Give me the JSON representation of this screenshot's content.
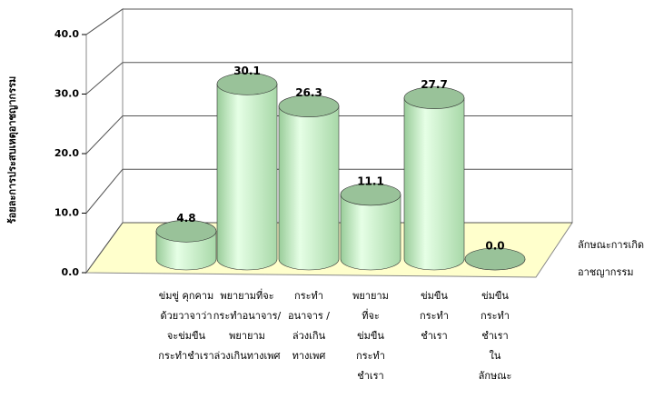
{
  "chart_data": {
    "type": "bar3d",
    "y_axis_label": "ร้อยละการประสบเหตุอาชญากรรม",
    "depth_axis_label": [
      "ลักษณะการเกิด",
      "อาชญากรรม"
    ],
    "categories": [
      [
        "ข่มขู่ คุกคาม",
        "ด้วยวาจาว่า",
        "จะข่มขืน",
        "กระทำชำเรา"
      ],
      [
        "พยายามที่จะ",
        "กระทำอนาจาร/",
        "พยายาม",
        "ล่วงเกินทางเพศ"
      ],
      [
        "กระทำ",
        "อนาจาร /",
        "ล่วงเกิน",
        "ทางเพศ"
      ],
      [
        "พยายาม",
        "ที่จะ",
        "ข่มขืน",
        "กระทำ",
        "ชำเรา"
      ],
      [
        "ข่มขืน",
        "กระทำ",
        "ชำเรา"
      ],
      [
        "ข่มขืน",
        "กระทำ",
        "ชำเรา",
        "ใน",
        "ลักษณะ"
      ]
    ],
    "values": [
      4.8,
      30.1,
      26.3,
      11.1,
      27.7,
      0
    ],
    "value_labels": [
      "4.8",
      "30.1",
      "26.3",
      "11.1",
      "27.7",
      "0.0"
    ],
    "color": "#ccffcc",
    "top_color": "#99c299",
    "ylim": [
      0,
      40
    ],
    "yticks": [
      {
        "value": 0,
        "label": "0.0"
      },
      {
        "value": 10,
        "label": "10.0"
      },
      {
        "value": 20,
        "label": "20.0"
      },
      {
        "value": 30,
        "label": "30.0"
      },
      {
        "value": 40,
        "label": "40.0"
      }
    ],
    "grid": true
  }
}
